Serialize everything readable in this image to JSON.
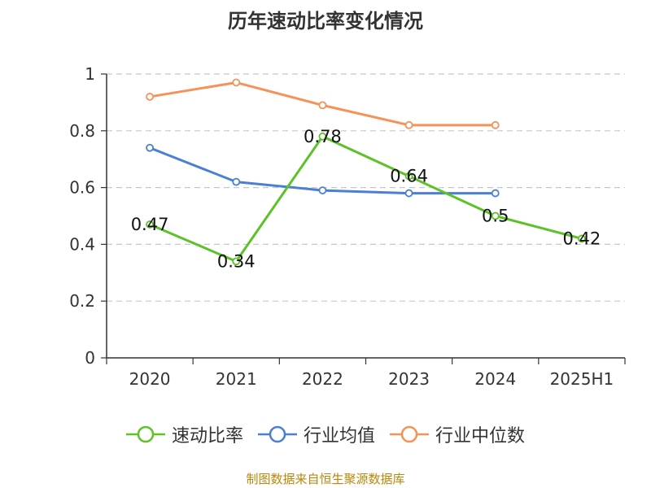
{
  "chart_data": {
    "type": "line",
    "title": "历年速动比率变化情况",
    "categories": [
      "2020",
      "2021",
      "2022",
      "2023",
      "2024",
      "2025H1"
    ],
    "ylim": [
      0,
      1
    ],
    "yticks": [
      0,
      0.2,
      0.4,
      0.6,
      0.8,
      1
    ],
    "ytick_labels": [
      "0",
      "0.2",
      "0.4",
      "0.6",
      "0.8",
      "1"
    ],
    "grid": true,
    "legend_position": "bottom",
    "series": [
      {
        "name": "速动比率",
        "color": "#5cc227",
        "values": [
          0.47,
          0.34,
          0.78,
          0.64,
          0.5,
          0.42
        ],
        "data_labels": [
          "0.47",
          "0.34",
          "0.78",
          "0.64",
          "0.5",
          "0.42"
        ]
      },
      {
        "name": "行业均值",
        "color": "#4a7fd6",
        "values": [
          0.74,
          0.62,
          0.59,
          0.58,
          0.58,
          null
        ]
      },
      {
        "name": "行业中位数",
        "color": "#f5925a",
        "values": [
          0.92,
          0.97,
          0.89,
          0.82,
          0.82,
          null
        ]
      }
    ]
  },
  "footer": {
    "source": "制图数据来自恒生聚源数据库"
  }
}
